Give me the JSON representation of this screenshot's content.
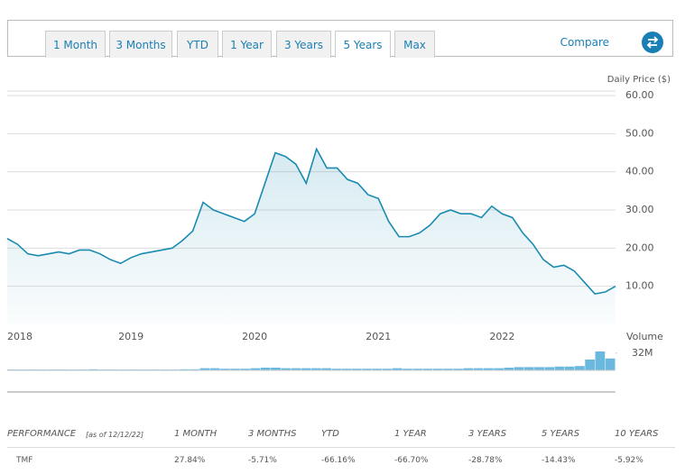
{
  "range_buttons": [
    "1 Month",
    "3 Months",
    "YTD",
    "1 Year",
    "3 Years",
    "5 Years",
    "Max"
  ],
  "active_range": 5,
  "compare": "Compare",
  "chart_data": [
    {
      "type": "line",
      "y_axis_label": "Daily Price ($)",
      "categories": [
        "2018",
        null,
        null,
        null,
        null,
        null,
        null,
        null,
        null,
        null,
        null,
        null,
        "2019",
        null,
        null,
        null,
        null,
        null,
        null,
        null,
        null,
        null,
        null,
        null,
        "2020",
        null,
        null,
        null,
        null,
        null,
        null,
        null,
        null,
        null,
        null,
        null,
        "2021",
        null,
        null,
        null,
        null,
        null,
        null,
        null,
        null,
        null,
        null,
        null,
        "2022",
        null,
        null,
        null,
        null,
        null,
        null,
        null,
        null,
        null,
        null,
        null
      ],
      "values": [
        22.5,
        21,
        18.5,
        18,
        18.5,
        19,
        18.5,
        19.5,
        19.5,
        18.5,
        17,
        16,
        17.5,
        18.5,
        19,
        19.5,
        20,
        22,
        24.5,
        32,
        30,
        29,
        28,
        27,
        29,
        37,
        45,
        44,
        42,
        37,
        46,
        41,
        41,
        38,
        37,
        34,
        33,
        27,
        23,
        23,
        24,
        26,
        29,
        30,
        29,
        29,
        28,
        31,
        29,
        28,
        24,
        21,
        17,
        15,
        15.5,
        14,
        11,
        8,
        8.5,
        10
      ],
      "color": "#1a8bb0",
      "ylim": [
        0,
        60
      ],
      "yticks": [
        {
          "value": 10,
          "label": "10.00"
        },
        {
          "value": 20,
          "label": "20.00"
        },
        {
          "value": 30,
          "label": "30.00"
        },
        {
          "value": 40,
          "label": "40.00"
        },
        {
          "value": 50,
          "label": "50.00"
        },
        {
          "value": 60,
          "label": "60.00"
        }
      ],
      "grid": true
    },
    {
      "type": "bar",
      "y_axis_label": "Volume",
      "values": [
        1.5,
        1.5,
        1.5,
        1.5,
        1.5,
        1.5,
        1.5,
        1.5,
        2,
        1.5,
        1.5,
        1.5,
        1.5,
        1.5,
        1.5,
        1.5,
        1.5,
        2,
        2,
        4,
        4,
        3,
        3,
        3,
        4,
        5,
        5,
        4,
        4,
        4,
        4,
        4,
        3,
        3,
        3,
        3,
        3,
        3,
        4,
        3,
        3,
        3,
        3,
        3,
        3,
        4,
        4,
        4,
        4,
        5,
        6,
        6,
        6,
        6,
        7,
        7,
        8,
        20,
        35,
        22
      ],
      "color": "#6bb8de",
      "ylim": [
        0,
        40
      ],
      "yticks": [
        {
          "value": 32,
          "label": "32M"
        }
      ]
    }
  ],
  "performance": {
    "title": "PERFORMANCE",
    "as_of": "[as of 12/12/22]",
    "columns": [
      "1 MONTH",
      "3 MONTHS",
      "YTD",
      "1 YEAR",
      "3 YEARS",
      "5 YEARS",
      "10 YEARS"
    ],
    "rows": [
      [
        "TMF",
        "27.84%",
        "-5.71%",
        "-66.16%",
        "-66.70%",
        "-28.78%",
        "-14.43%",
        "-5.92%"
      ]
    ]
  }
}
